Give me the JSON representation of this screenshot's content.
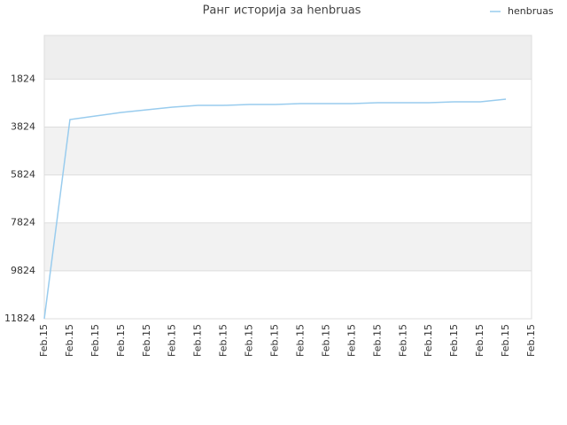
{
  "chart_data": {
    "type": "line",
    "title": "Ранг историја за henbruas",
    "categories": [
      "Feb.15",
      "Feb.15",
      "Feb.15",
      "Feb.15",
      "Feb.15",
      "Feb.15",
      "Feb.15",
      "Feb.15",
      "Feb.15",
      "Feb.15",
      "Feb.15",
      "Feb.15",
      "Feb.15",
      "Feb.15",
      "Feb.15",
      "Feb.15",
      "Feb.15",
      "Feb.15",
      "Feb.15",
      "Feb.15"
    ],
    "series": [
      {
        "name": "henbruas",
        "color": "#99ccee",
        "values": [
          11824,
          3510,
          3362,
          3215,
          3104,
          2993,
          2919,
          2919,
          2882,
          2882,
          2845,
          2845,
          2845,
          2808,
          2808,
          2808,
          2771,
          2771,
          2660,
          null
        ]
      }
    ],
    "ylim": [
      11824,
      0
    ],
    "yticks": [
      1824,
      3824,
      5824,
      7824,
      9824,
      11824
    ],
    "grid": true,
    "legend": "top-right"
  }
}
